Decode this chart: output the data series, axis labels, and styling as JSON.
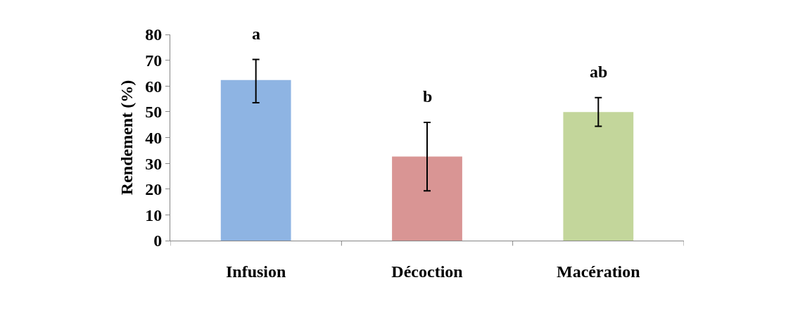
{
  "chart_data": {
    "type": "bar",
    "ylabel": "Rendement (%)",
    "categories": [
      "Infusion",
      "Décoction",
      "Macération"
    ],
    "values": [
      62.3,
      32.6,
      49.9
    ],
    "colors": [
      "#8eb4e3",
      "#d99594",
      "#c3d69b"
    ],
    "errors": [
      [
        53.5,
        70.3
      ],
      [
        19.3,
        45.9
      ],
      [
        44.4,
        55.5
      ]
    ],
    "ylim": [
      0,
      80
    ],
    "yticks": [
      0,
      10,
      20,
      30,
      40,
      50,
      60,
      70,
      80
    ],
    "annotations": [
      "a",
      "b",
      "ab"
    ]
  }
}
